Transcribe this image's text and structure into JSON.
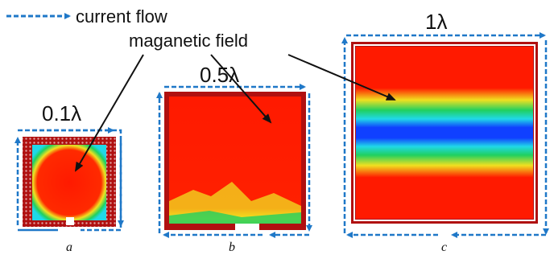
{
  "legend": {
    "current_flow": "current flow",
    "magnetic_field": "maganetic field"
  },
  "panels": [
    {
      "id": "a",
      "size_label": "0.1λ",
      "caption": "a"
    },
    {
      "id": "b",
      "size_label": "0.5λ",
      "caption": "b"
    },
    {
      "id": "c",
      "size_label": "1λ",
      "caption": "c"
    }
  ],
  "colors": {
    "current_arrow": "#1f78c8",
    "field_high": "#ff1a00",
    "field_mid": "#f0e020",
    "field_green": "#20d060",
    "field_cyan": "#20d8e8",
    "field_low": "#1040ff",
    "conductor": "#b01010"
  }
}
